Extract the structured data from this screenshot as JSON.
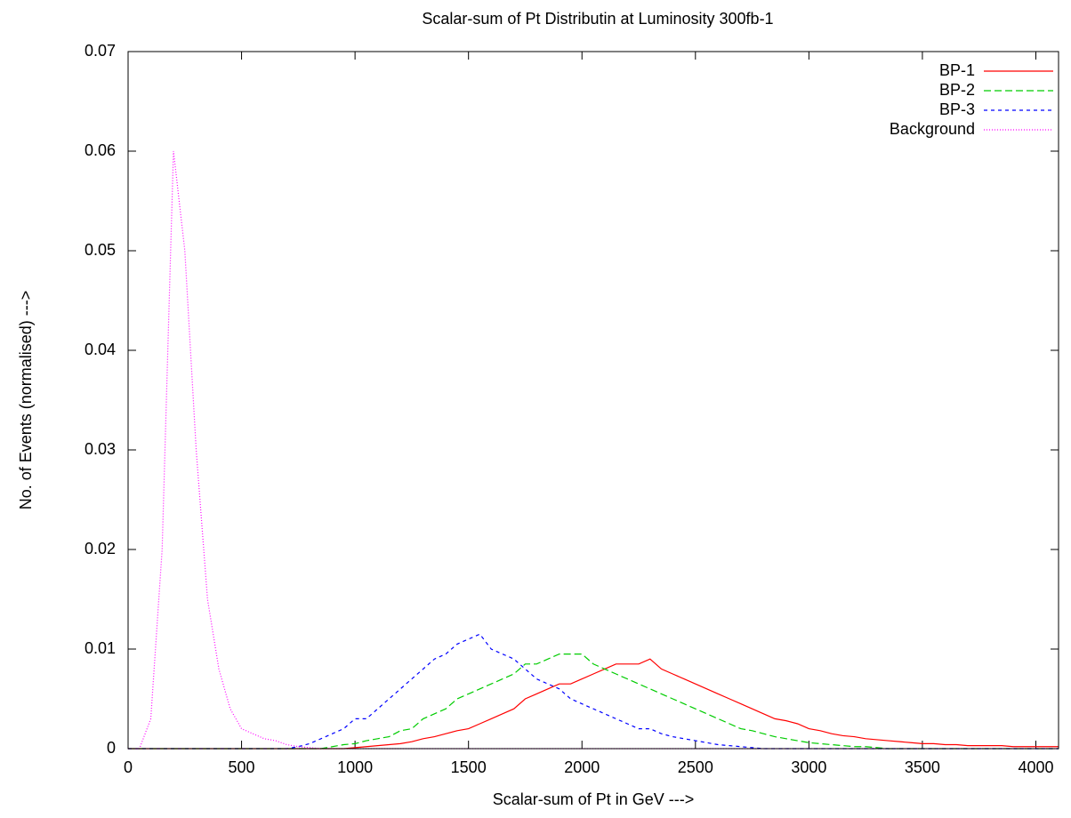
{
  "chart_data": {
    "type": "line",
    "title": "Scalar-sum of Pt Distributin at Luminosity 300fb-1",
    "xlabel": "Scalar-sum of Pt in GeV --->",
    "ylabel": "No. of Events (normalised) --->",
    "x": [
      0,
      50,
      100,
      150,
      200,
      250,
      300,
      350,
      400,
      450,
      500,
      550,
      600,
      650,
      700,
      750,
      800,
      850,
      900,
      950,
      1000,
      1050,
      1100,
      1150,
      1200,
      1250,
      1300,
      1350,
      1400,
      1450,
      1500,
      1550,
      1600,
      1650,
      1700,
      1750,
      1800,
      1850,
      1900,
      1950,
      2000,
      2050,
      2100,
      2150,
      2200,
      2250,
      2300,
      2350,
      2400,
      2450,
      2500,
      2550,
      2600,
      2650,
      2700,
      2750,
      2800,
      2850,
      2900,
      2950,
      3000,
      3050,
      3100,
      3150,
      3200,
      3250,
      3300,
      3350,
      3400,
      3450,
      3500,
      3550,
      3600,
      3650,
      3700,
      3750,
      3800,
      3850,
      3900,
      3950,
      4000,
      4050,
      4100
    ],
    "series": [
      {
        "name": "BP-1",
        "color": "#ff0000",
        "dash": "none",
        "values": [
          0,
          0,
          0,
          0,
          0,
          0,
          0,
          0,
          0,
          0,
          0,
          0,
          0,
          0,
          0,
          0,
          0,
          0,
          0,
          0,
          0.0001,
          0.0002,
          0.0003,
          0.0004,
          0.0005,
          0.0007,
          0.001,
          0.0012,
          0.0015,
          0.0018,
          0.002,
          0.0025,
          0.003,
          0.0035,
          0.004,
          0.005,
          0.0055,
          0.006,
          0.0065,
          0.0065,
          0.007,
          0.0075,
          0.008,
          0.0085,
          0.0085,
          0.0085,
          0.009,
          0.008,
          0.0075,
          0.007,
          0.0065,
          0.006,
          0.0055,
          0.005,
          0.0045,
          0.004,
          0.0035,
          0.003,
          0.0028,
          0.0025,
          0.002,
          0.0018,
          0.0015,
          0.0013,
          0.0012,
          0.001,
          0.0009,
          0.0008,
          0.0007,
          0.0006,
          0.0005,
          0.0005,
          0.0004,
          0.0004,
          0.0003,
          0.0003,
          0.0003,
          0.0003,
          0.0002,
          0.0002,
          0.0002,
          0.0002,
          0.0002
        ]
      },
      {
        "name": "BP-2",
        "color": "#00cc00",
        "dash": "8 4",
        "values": [
          0,
          0,
          0,
          0,
          0,
          0,
          0,
          0,
          0,
          0,
          0,
          0,
          0,
          0,
          0,
          0,
          0,
          0,
          0.0002,
          0.0004,
          0.0005,
          0.0008,
          0.001,
          0.0012,
          0.0018,
          0.002,
          0.003,
          0.0035,
          0.004,
          0.005,
          0.0055,
          0.006,
          0.0065,
          0.007,
          0.0075,
          0.0085,
          0.0085,
          0.009,
          0.0095,
          0.0095,
          0.0095,
          0.0085,
          0.008,
          0.0075,
          0.007,
          0.0065,
          0.006,
          0.0055,
          0.005,
          0.0045,
          0.004,
          0.0035,
          0.003,
          0.0025,
          0.002,
          0.0018,
          0.0015,
          0.0012,
          0.001,
          0.0008,
          0.0006,
          0.0005,
          0.0004,
          0.0003,
          0.0002,
          0.0002,
          0.0001,
          0,
          0,
          0,
          0,
          0,
          0,
          0,
          0,
          0,
          0,
          0,
          0,
          0,
          0,
          0,
          0
        ]
      },
      {
        "name": "BP-3",
        "color": "#0000ff",
        "dash": "4 4",
        "values": [
          0,
          0,
          0,
          0,
          0,
          0,
          0,
          0,
          0,
          0,
          0,
          0,
          0,
          0,
          0,
          0.0002,
          0.0005,
          0.001,
          0.0015,
          0.002,
          0.003,
          0.003,
          0.004,
          0.005,
          0.006,
          0.007,
          0.008,
          0.009,
          0.0095,
          0.0105,
          0.011,
          0.0115,
          0.01,
          0.0095,
          0.009,
          0.008,
          0.007,
          0.0065,
          0.006,
          0.005,
          0.0045,
          0.004,
          0.0035,
          0.003,
          0.0025,
          0.002,
          0.002,
          0.0015,
          0.0012,
          0.001,
          0.0008,
          0.0006,
          0.0004,
          0.0003,
          0.0002,
          0.0001,
          0,
          0,
          0,
          0,
          0,
          0,
          0,
          0,
          0,
          0,
          0,
          0,
          0,
          0,
          0,
          0,
          0,
          0,
          0,
          0,
          0,
          0,
          0,
          0,
          0,
          0,
          0
        ]
      },
      {
        "name": "Background",
        "color": "#ff00ff",
        "dash": "1 2",
        "values": [
          0,
          0,
          0.003,
          0.02,
          0.06,
          0.05,
          0.03,
          0.015,
          0.008,
          0.004,
          0.002,
          0.0015,
          0.001,
          0.0008,
          0.0004,
          0.0002,
          0.0001,
          0,
          0,
          0,
          0,
          0,
          0,
          0,
          0,
          0,
          0,
          0,
          0,
          0,
          0,
          0,
          0,
          0,
          0,
          0,
          0,
          0,
          0,
          0,
          0,
          0,
          0,
          0,
          0,
          0,
          0,
          0,
          0,
          0,
          0,
          0,
          0,
          0,
          0,
          0,
          0,
          0,
          0,
          0,
          0,
          0,
          0,
          0,
          0,
          0,
          0,
          0,
          0,
          0,
          0,
          0,
          0,
          0,
          0,
          0,
          0,
          0,
          0,
          0,
          0,
          0,
          0
        ]
      }
    ],
    "xlim": [
      0,
      4100
    ],
    "xticks": [
      0,
      500,
      1000,
      1500,
      2000,
      2500,
      3000,
      3500,
      4000
    ],
    "ylim": [
      0,
      0.07
    ],
    "yticks": [
      0,
      0.01,
      0.02,
      0.03,
      0.04,
      0.05,
      0.06,
      0.07
    ],
    "grid": false,
    "legend": "top-right"
  }
}
